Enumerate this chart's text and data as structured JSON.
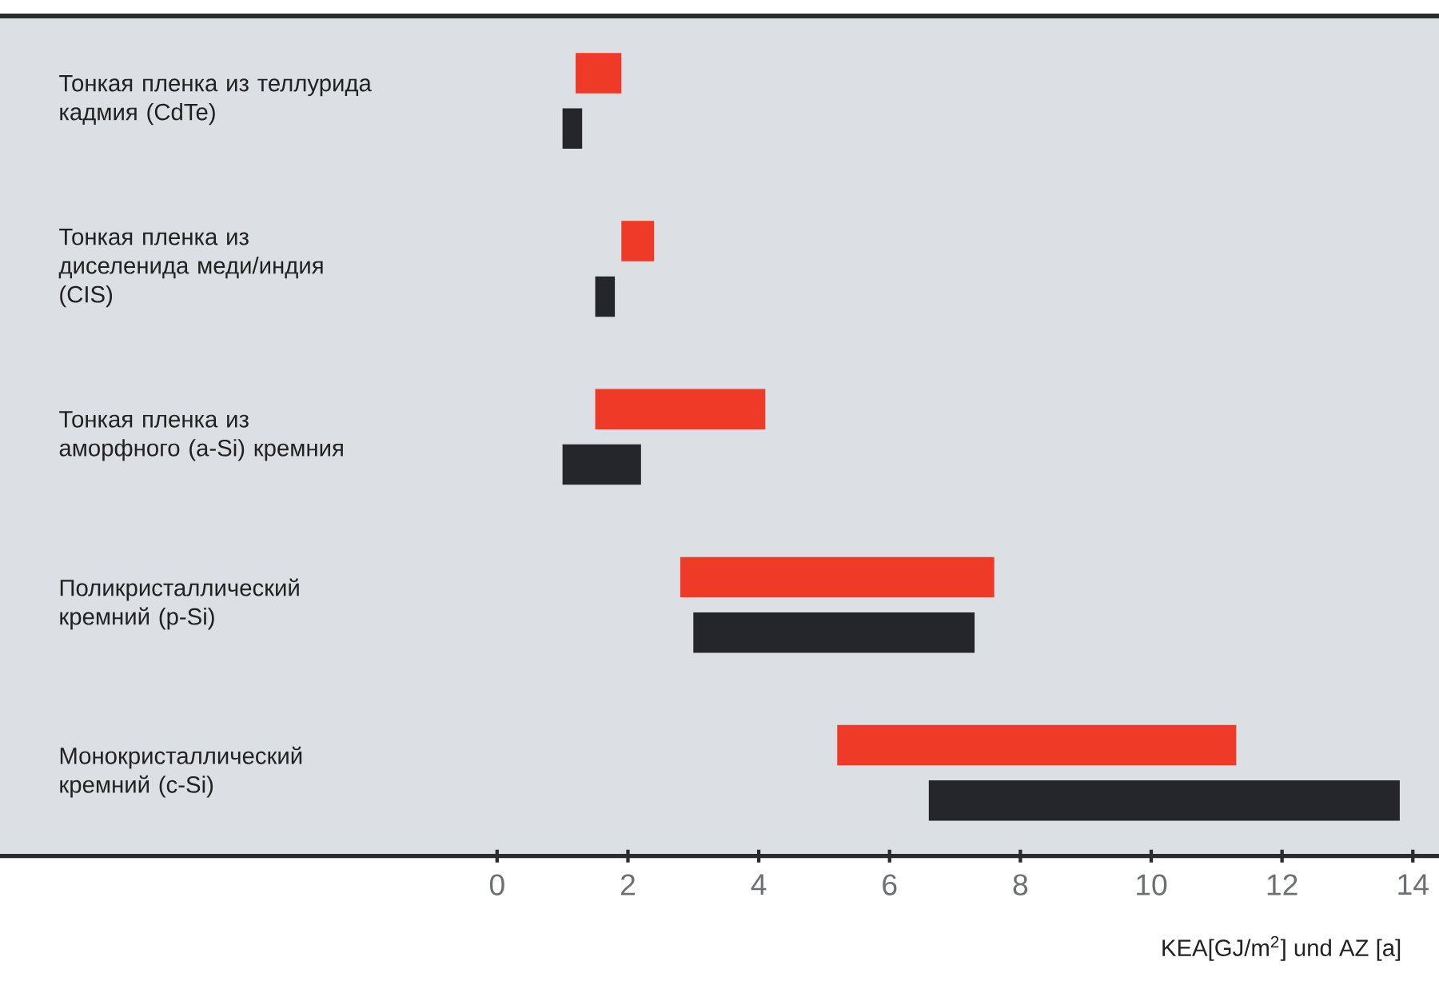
{
  "chart_data": {
    "type": "bar",
    "orientation": "horizontal",
    "xlabel": "KEA[GJ/m$^{2}$] und AZ [a]",
    "categories": [
      "Тонкая пленка из теллурида кадмия (CdTe)",
      "Тонкая пленка из диселенида меди/индия (CIS)",
      "Тонкая пленка из аморфного (a-Si) кремния",
      "Поликристаллический кремний (p-Si)",
      "Монокристаллический кремний (c-Si)"
    ],
    "series": [
      {
        "color": "#ee3a26",
        "base": [
          1.2,
          1.9,
          1.5,
          2.8,
          5.2
        ],
        "values": [
          0.7,
          0.5,
          2.6,
          4.8,
          6.1
        ]
      },
      {
        "color": "#25262b",
        "base": [
          1.0,
          1.5,
          1.0,
          3.0,
          6.6
        ],
        "values": [
          0.3,
          0.3,
          1.2,
          4.3,
          7.2
        ]
      }
    ],
    "xlim": [
      -7.6,
      14.4
    ],
    "xticks": [
      0,
      2,
      4,
      6,
      8,
      10,
      12,
      14
    ]
  }
}
